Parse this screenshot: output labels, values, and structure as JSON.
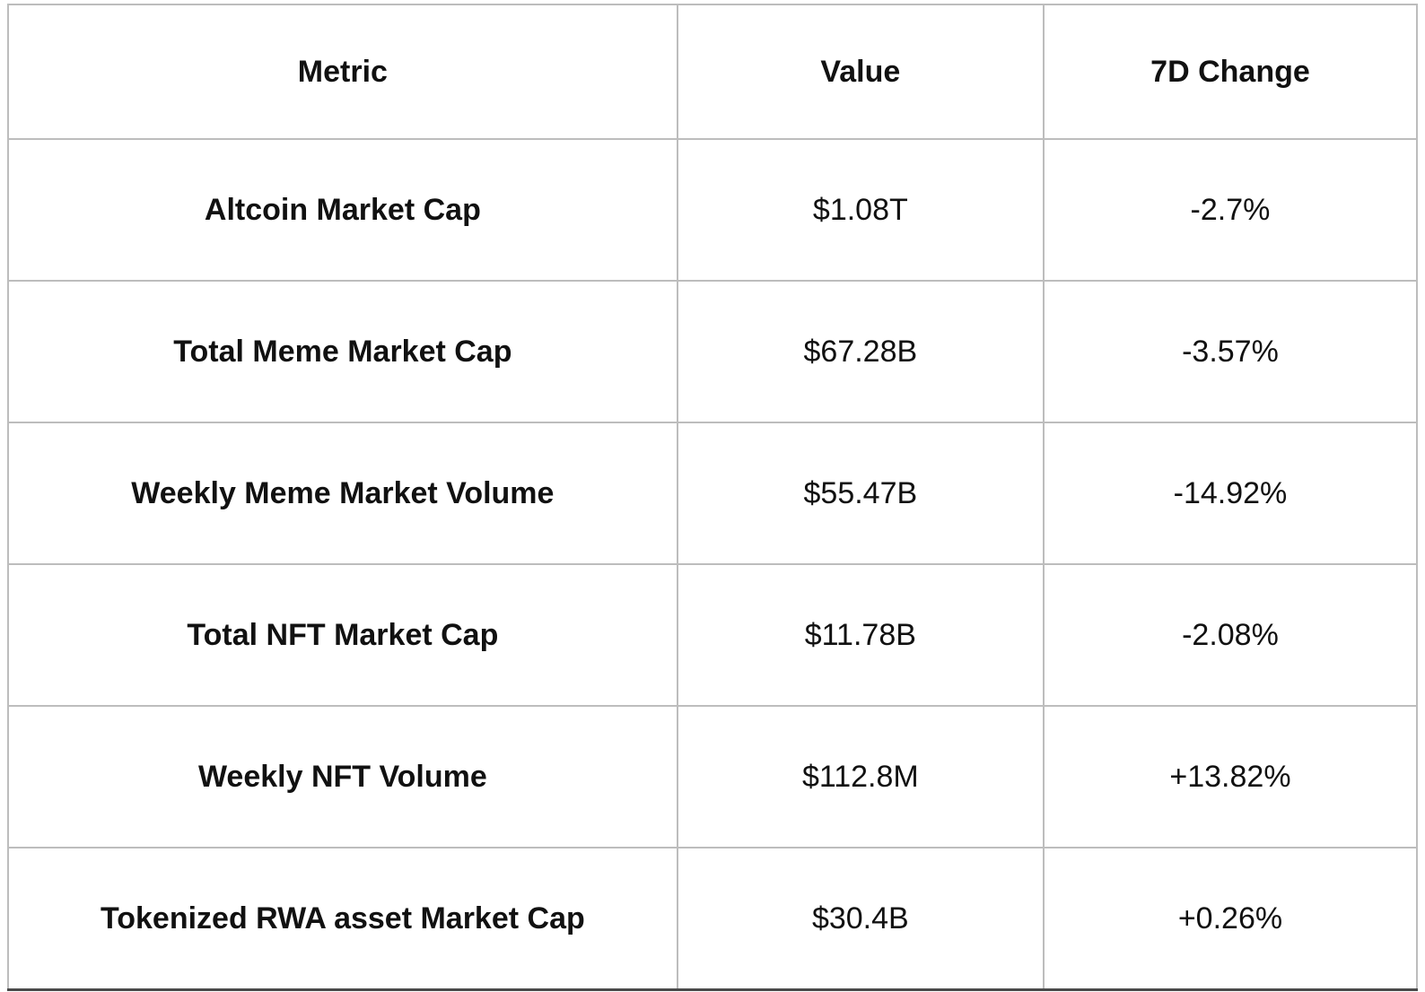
{
  "table": {
    "columns": [
      "Metric",
      "Value",
      "7D Change"
    ],
    "rows": [
      {
        "metric": "Altcoin Market Cap",
        "value": "$1.08T",
        "change": "-2.7%"
      },
      {
        "metric": "Total Meme Market Cap",
        "value": "$67.28B",
        "change": "-3.57%"
      },
      {
        "metric": "Weekly Meme Market Volume",
        "value": "$55.47B",
        "change": "-14.92%"
      },
      {
        "metric": "Total NFT Market Cap",
        "value": "$11.78B",
        "change": "-2.08%"
      },
      {
        "metric": "Weekly NFT Volume",
        "value": "$112.8M",
        "change": "+13.82%"
      },
      {
        "metric": "Tokenized RWA asset Market Cap",
        "value": "$30.4B",
        "change": "+0.26%"
      }
    ],
    "colors": {
      "text": "#111111",
      "grid_border": "#bdbdbd",
      "outer_border_top": "#9e9e9e",
      "outer_border_bottom": "#4a4a4a",
      "background": "#ffffff"
    }
  }
}
